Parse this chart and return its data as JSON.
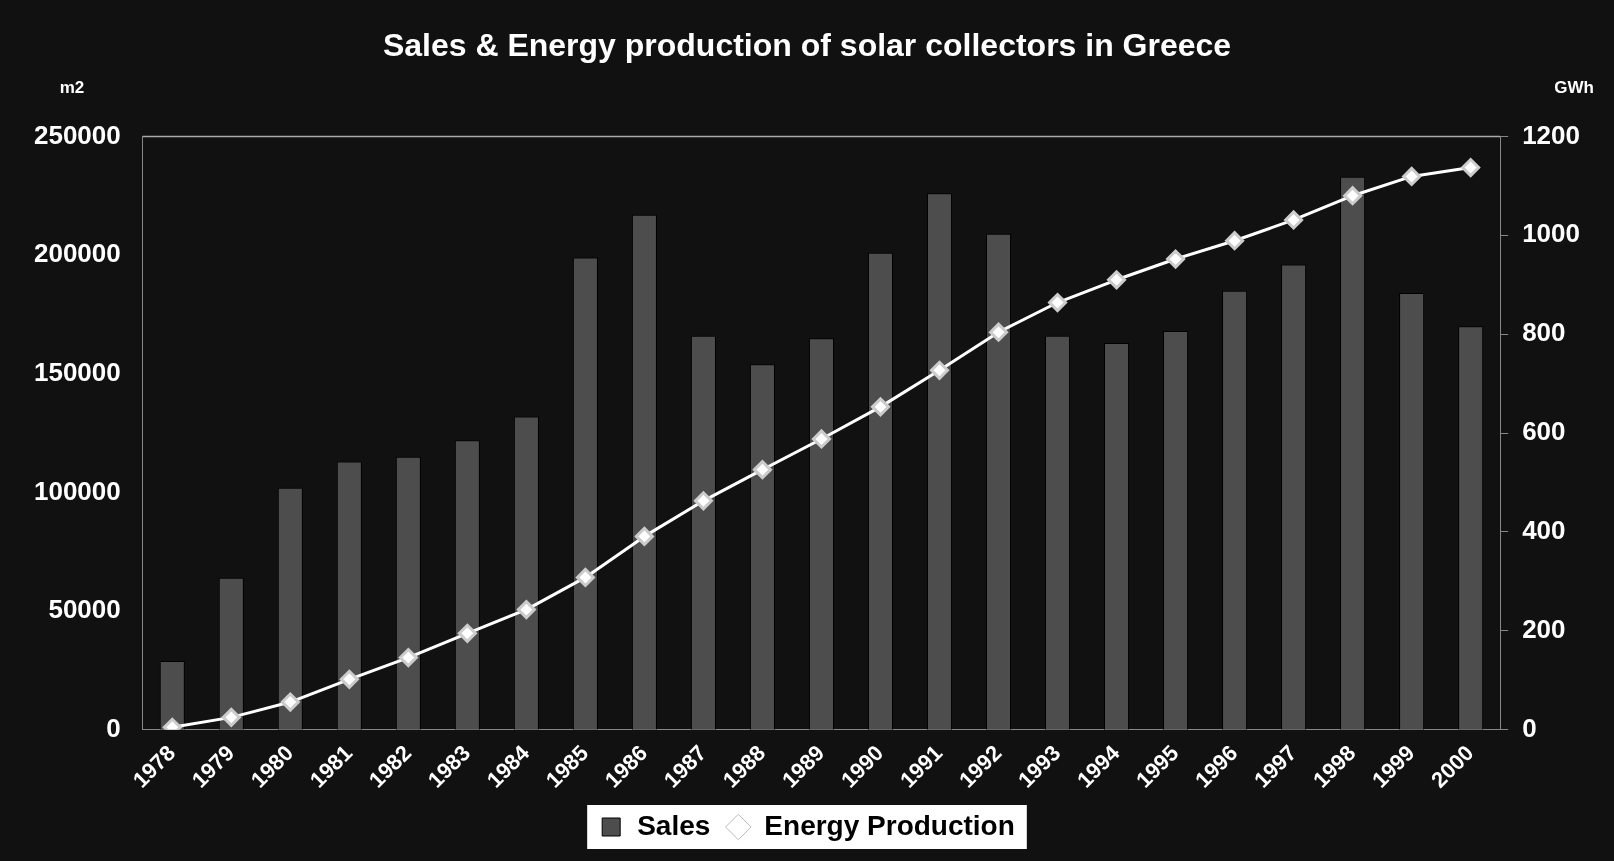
{
  "chart_data": {
    "type": "bar",
    "title": "Sales & Energy production of solar collectors in Greece",
    "ylabel": "m2",
    "y2label": "GWh",
    "categories": [
      "1978",
      "1979",
      "1980",
      "1981",
      "1982",
      "1983",
      "1984",
      "1985",
      "1986",
      "1987",
      "1988",
      "1989",
      "1990",
      "1991",
      "1992",
      "1993",
      "1994",
      "1995",
      "1996",
      "1997",
      "1998",
      "1999",
      "2000"
    ],
    "series": [
      {
        "name": "Sales",
        "color": "#4d4d4d",
        "values": [
          29000,
          64000,
          102000,
          113000,
          115000,
          122000,
          132000,
          199000,
          217000,
          166000,
          154000,
          165000,
          201000,
          226000,
          209000,
          166000,
          163000,
          168000,
          185000,
          196000,
          233000,
          184000,
          170000
        ]
      },
      {
        "name": "Energy Production",
        "type": "line",
        "axis": "y2",
        "color": "#ffffff",
        "marker": "diamond",
        "values": [
          5,
          25,
          56,
          102,
          146,
          195,
          243,
          308,
          391,
          463,
          526,
          588,
          653,
          727,
          804,
          864,
          910,
          952,
          989,
          1031,
          1080,
          1119,
          1137
        ]
      }
    ],
    "ylim": [
      0,
      250000
    ],
    "yticks": [
      0,
      50000,
      100000,
      150000,
      200000,
      250000
    ],
    "y2lim": [
      0,
      1200
    ],
    "y2ticks": [
      0,
      200,
      400,
      600,
      800,
      1000,
      1200
    ],
    "grid": false,
    "legend": "bottom"
  }
}
